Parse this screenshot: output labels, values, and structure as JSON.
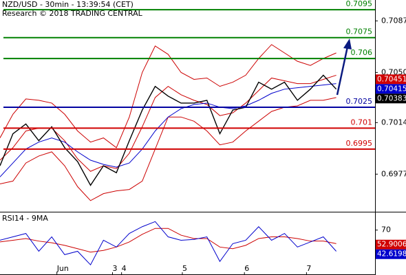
{
  "chart_data": [
    {
      "type": "line",
      "title": "NZD/USD - 30min - 13:39:54 (CET)",
      "subtitle": "Research © 2018 TRADING CENTRAL",
      "x": [
        0,
        10,
        20,
        30,
        40,
        50,
        60,
        70,
        80,
        90,
        100,
        110,
        120,
        130,
        140,
        150,
        160,
        170,
        180,
        190,
        200,
        210,
        220,
        230,
        240,
        250,
        260
      ],
      "series": [
        {
          "color": "#cc0000",
          "values": [
            0.7003,
            0.702,
            0.7031,
            0.703,
            0.7028,
            0.702,
            0.7008,
            0.7,
            0.7003,
            0.6996,
            0.7018,
            0.705,
            0.7069,
            0.7063,
            0.705,
            0.7045,
            0.7046,
            0.704,
            0.7043,
            0.7048,
            0.706,
            0.707,
            0.7064,
            0.7058,
            0.7055,
            0.706,
            0.7064
          ]
        },
        {
          "color": "#cc0000",
          "values": [
            0.697,
            0.6972,
            0.6985,
            0.699,
            0.6993,
            0.6983,
            0.6968,
            0.6958,
            0.6963,
            0.6965,
            0.6966,
            0.6972,
            0.6995,
            0.7018,
            0.7018,
            0.7015,
            0.7008,
            0.6998,
            0.7,
            0.7008,
            0.7015,
            0.7022,
            0.7025,
            0.7026,
            0.703,
            0.703,
            0.7032
          ]
        },
        {
          "color": "#cc0000",
          "values": [
            0.6987,
            0.6996,
            0.7008,
            0.701,
            0.701,
            0.7001,
            0.6988,
            0.6979,
            0.6983,
            0.6981,
            0.6992,
            0.7011,
            0.7032,
            0.704,
            0.7034,
            0.703,
            0.7027,
            0.7019,
            0.7021,
            0.7028,
            0.7037,
            0.7046,
            0.7044,
            0.7042,
            0.7042,
            0.7045,
            0.7048
          ]
        },
        {
          "color": "#0000cc",
          "values": [
            0.6975,
            0.6985,
            0.6995,
            0.7,
            0.7003,
            0.7,
            0.6993,
            0.6987,
            0.6984,
            0.6982,
            0.6985,
            0.6995,
            0.7008,
            0.7018,
            0.7024,
            0.7027,
            0.7028,
            0.7025,
            0.7024,
            0.7026,
            0.703,
            0.7035,
            0.7038,
            0.7039,
            0.704,
            0.7041,
            0.7042
          ]
        },
        {
          "color": "#000000",
          "values": [
            0.6983,
            0.7006,
            0.7013,
            0.7001,
            0.7011,
            0.6996,
            0.6986,
            0.6969,
            0.6983,
            0.6978,
            0.7001,
            0.7023,
            0.704,
            0.7033,
            0.7028,
            0.7028,
            0.703,
            0.7006,
            0.7023,
            0.7025,
            0.7043,
            0.7038,
            0.7043,
            0.703,
            0.7038,
            0.7048,
            0.7038
          ]
        }
      ],
      "xlim": [
        0,
        290
      ],
      "ylim": [
        0.695,
        0.7102
      ],
      "yticks": [
        0.6977,
        0.7014,
        {
          "value": 0.705,
          "label": "0.7050"
        },
        0.7087
      ],
      "levels": [
        {
          "value": 0.7095,
          "color": "#008000"
        },
        {
          "value": 0.7075,
          "color": "#008000"
        },
        {
          "value": 0.706,
          "color": "#008000"
        },
        {
          "value": 0.7025,
          "color": "#0000a0"
        },
        {
          "value": 0.701,
          "color": "#d00000"
        },
        {
          "value": 0.6995,
          "color": "#d00000"
        }
      ],
      "tags": [
        {
          "value": 0.70451,
          "color": "#d00000"
        },
        {
          "value": 0.70415,
          "color": "#0000cc"
        },
        {
          "value": 0.70383,
          "color": "#000000"
        }
      ]
    },
    {
      "type": "line",
      "title": "RSI14 - 9MA",
      "x": [
        0,
        10,
        20,
        30,
        40,
        50,
        60,
        70,
        80,
        90,
        100,
        110,
        120,
        130,
        140,
        150,
        160,
        170,
        180,
        190,
        200,
        210,
        220,
        230,
        240,
        250,
        260
      ],
      "series": [
        {
          "color": "#cc0000",
          "values": [
            56,
            58,
            60,
            57,
            55,
            52,
            48,
            44,
            46,
            50,
            56,
            65,
            72,
            72,
            64,
            60,
            60,
            50,
            48,
            52,
            60,
            62,
            62,
            60,
            57,
            57,
            54
          ]
        },
        {
          "color": "#0000cc",
          "values": [
            58,
            62,
            66,
            45,
            62,
            41,
            45,
            29,
            58,
            50,
            66,
            74,
            80,
            62,
            58,
            59,
            62,
            33,
            54,
            58,
            74,
            58,
            66,
            50,
            56,
            62,
            45
          ]
        }
      ],
      "xlim": [
        0,
        290
      ],
      "ylim": [
        17,
        90
      ],
      "yticks": [
        70
      ],
      "xticks": [
        {
          "value": 44,
          "label": "Jun"
        },
        {
          "value": 87,
          "label": "3"
        },
        {
          "value": 94,
          "label": "4"
        },
        {
          "value": 141,
          "label": "5"
        },
        {
          "value": 189,
          "label": "6"
        },
        {
          "value": 237,
          "label": "7"
        }
      ],
      "tags": [
        {
          "value": 52.9006,
          "color": "#d00000"
        },
        {
          "value": 42.6198,
          "color": "#0000cc"
        }
      ]
    }
  ]
}
